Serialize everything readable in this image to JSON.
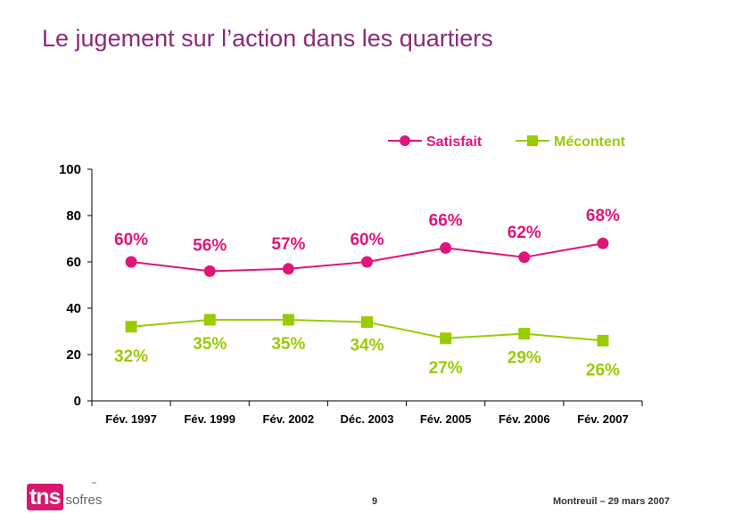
{
  "header": {
    "title": "Le jugement sur l’action dans les quartiers"
  },
  "chart_data": {
    "type": "line",
    "title": "",
    "xlabel": "",
    "ylabel": "",
    "categories": [
      "Fév. 1997",
      "Fév. 1999",
      "Fév. 2002",
      "Déc. 2003",
      "Fév. 2005",
      "Fév. 2006",
      "Fév. 2007"
    ],
    "ylim": [
      0,
      100
    ],
    "yticks": [
      0,
      20,
      40,
      60,
      80,
      100
    ],
    "legend_position": "top-right",
    "series": [
      {
        "name": "Satisfait",
        "values": [
          60,
          56,
          57,
          60,
          66,
          62,
          68
        ],
        "labels": [
          "60%",
          "56%",
          "57%",
          "60%",
          "66%",
          "62%",
          "68%"
        ],
        "color": "#e0157a",
        "marker": "circle",
        "label_position": "above"
      },
      {
        "name": "Mécontent",
        "values": [
          32,
          35,
          35,
          34,
          27,
          29,
          26
        ],
        "labels": [
          "32%",
          "35%",
          "35%",
          "34%",
          "27%",
          "29%",
          "26%"
        ],
        "color": "#99cc00",
        "marker": "square",
        "label_position": "below"
      }
    ]
  },
  "footer": {
    "logo_main": "tns",
    "logo_sub": "sofres",
    "logo_tm": "™",
    "page_number": "9",
    "right_text": "Montreuil – 29 mars 2007"
  }
}
